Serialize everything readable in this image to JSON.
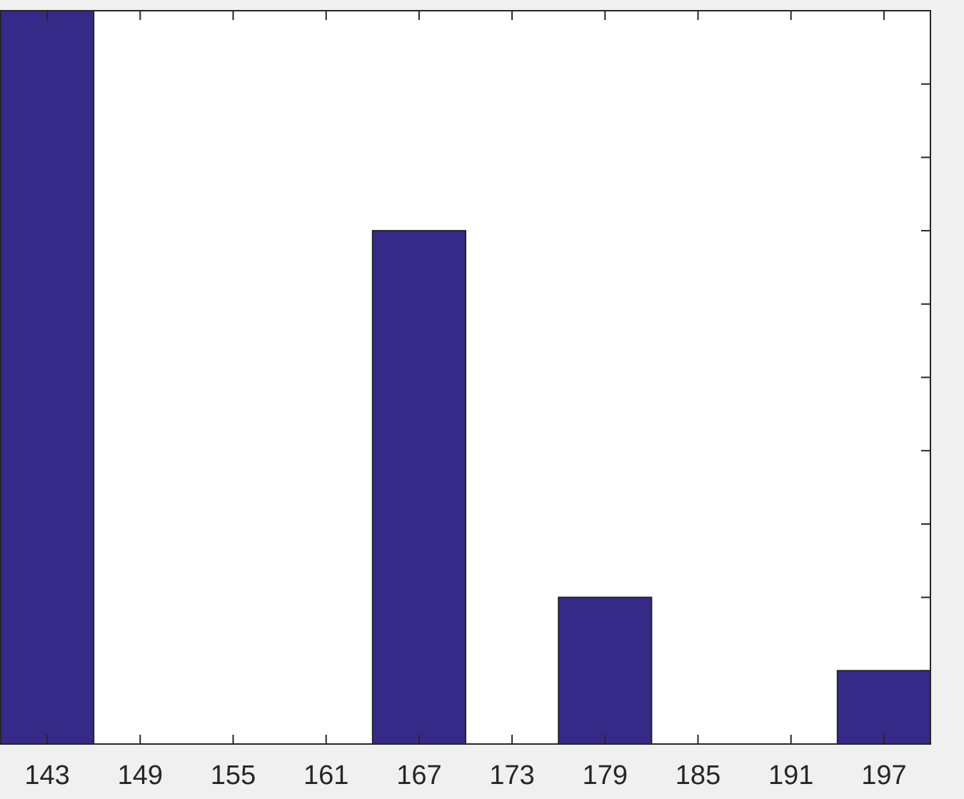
{
  "chart_data": {
    "type": "bar",
    "categories": [
      "143",
      "149",
      "155",
      "161",
      "167",
      "173",
      "179",
      "185",
      "191",
      "197"
    ],
    "values": [
      10,
      0,
      0,
      0,
      7,
      0,
      2,
      0,
      0,
      1
    ],
    "ylim": [
      0,
      10
    ],
    "y_ticks": [
      0,
      1,
      2,
      3,
      4,
      5,
      6,
      7,
      8,
      9,
      10
    ],
    "y_tick_labels_shown": false,
    "title": "",
    "xlabel": "",
    "ylabel": "",
    "grid": false,
    "legend": "none",
    "colors": {
      "bar": "#352a87",
      "bar_edge": "#262626",
      "axes_face": "#ffffff",
      "figure_background": "#f0f0f0",
      "axis_line": "#262626"
    }
  }
}
